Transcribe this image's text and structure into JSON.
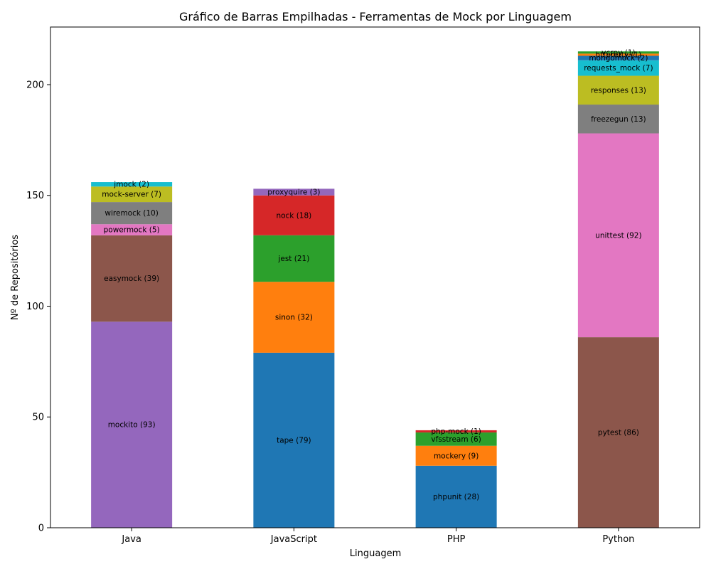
{
  "chart_data": {
    "type": "bar",
    "stacked": true,
    "title": "Gráfico de Barras Empilhadas - Ferramentas de Mock por Linguagem",
    "xlabel": "Linguagem",
    "ylabel": "Nº de Repositórios",
    "ylim": [
      0,
      226
    ],
    "yticks": [
      0,
      50,
      100,
      150,
      200
    ],
    "grid": false,
    "legend": "none",
    "categories": [
      "Java",
      "JavaScript",
      "PHP",
      "Python"
    ],
    "stacks": [
      {
        "category": "Java",
        "segments": [
          {
            "label": "mockito (93)",
            "value": 93,
            "color": "#9467bd"
          },
          {
            "label": "easymock (39)",
            "value": 39,
            "color": "#8c564b"
          },
          {
            "label": "powermock (5)",
            "value": 5,
            "color": "#e377c2"
          },
          {
            "label": "wiremock (10)",
            "value": 10,
            "color": "#7f7f7f"
          },
          {
            "label": "mock-server (7)",
            "value": 7,
            "color": "#bcbd22"
          },
          {
            "label": "jmock (2)",
            "value": 2,
            "color": "#17becf"
          }
        ]
      },
      {
        "category": "JavaScript",
        "segments": [
          {
            "label": "tape (79)",
            "value": 79,
            "color": "#1f77b4"
          },
          {
            "label": "sinon (32)",
            "value": 32,
            "color": "#ff7f0e"
          },
          {
            "label": "jest (21)",
            "value": 21,
            "color": "#2ca02c"
          },
          {
            "label": "nock (18)",
            "value": 18,
            "color": "#d62728"
          },
          {
            "label": "proxyquire (3)",
            "value": 3,
            "color": "#9467bd"
          }
        ]
      },
      {
        "category": "PHP",
        "segments": [
          {
            "label": "phpunit (28)",
            "value": 28,
            "color": "#1f77b4"
          },
          {
            "label": "mockery (9)",
            "value": 9,
            "color": "#ff7f0e"
          },
          {
            "label": "vfsstream (6)",
            "value": 6,
            "color": "#2ca02c"
          },
          {
            "label": "php-mock (1)",
            "value": 1,
            "color": "#d62728"
          }
        ]
      },
      {
        "category": "Python",
        "segments": [
          {
            "label": "pytest (86)",
            "value": 86,
            "color": "#8c564b"
          },
          {
            "label": "unittest (92)",
            "value": 92,
            "color": "#e377c2"
          },
          {
            "label": "freezegun (13)",
            "value": 13,
            "color": "#7f7f7f"
          },
          {
            "label": "responses (13)",
            "value": 13,
            "color": "#bcbd22"
          },
          {
            "label": "requests_mock (7)",
            "value": 7,
            "color": "#17becf"
          },
          {
            "label": "mongomock (2)",
            "value": 2,
            "color": "#1f77b4"
          },
          {
            "label": "httpretty (1)",
            "value": 1,
            "color": "#ff7f0e"
          },
          {
            "label": "vcrpy (1)",
            "value": 1,
            "color": "#2ca02c"
          }
        ]
      }
    ]
  }
}
